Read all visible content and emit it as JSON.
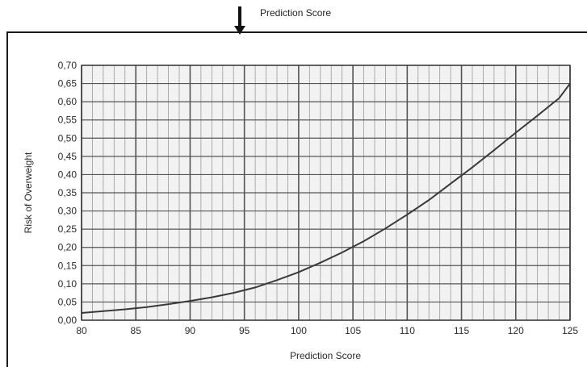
{
  "header": {
    "label": "Prediction Score"
  },
  "colors": {
    "curve": "#3a3a3a",
    "grid_major": "#555555",
    "grid_minor": "#9a9a9a",
    "frame": "#1a1a1a",
    "plot_bg": "#f2f2f2"
  },
  "chart_data": {
    "type": "line",
    "title": "",
    "xlabel": "Prediction Score",
    "ylabel": "Risk of Overweight",
    "xlim": [
      80,
      125
    ],
    "ylim": [
      0,
      0.7
    ],
    "grid": true,
    "x_ticks": [
      "80",
      "85",
      "90",
      "95",
      "100",
      "105",
      "110",
      "115",
      "120",
      "125"
    ],
    "y_ticks": [
      "0,00",
      "0,05",
      "0,10",
      "0,15",
      "0,20",
      "0,25",
      "0,30",
      "0,35",
      "0,40",
      "0,45",
      "0,50",
      "0,55",
      "0,60",
      "0,65",
      "0,70"
    ],
    "series": [
      {
        "x": [
          80,
          82,
          84,
          86,
          88,
          90,
          92,
          94,
          96,
          98,
          100,
          102,
          104,
          106,
          108,
          110,
          112,
          114,
          116,
          118,
          120,
          122,
          124,
          125
        ],
        "y": [
          0.02,
          0.025,
          0.03,
          0.036,
          0.044,
          0.053,
          0.063,
          0.075,
          0.09,
          0.11,
          0.132,
          0.158,
          0.186,
          0.217,
          0.252,
          0.29,
          0.33,
          0.375,
          0.42,
          0.467,
          0.515,
          0.562,
          0.61,
          0.65
        ]
      }
    ]
  }
}
